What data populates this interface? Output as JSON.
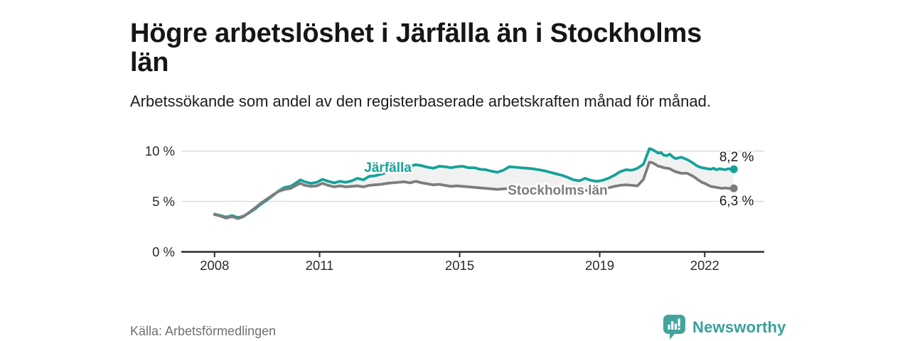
{
  "header": {
    "title": "Högre arbetslöshet i Järfälla än i Stockholms län",
    "subtitle": "Arbetssökande som andel av den registerbaserade arbetskraften månad för månad."
  },
  "footer": {
    "source": "Källa: Arbetsförmedlingen",
    "brand": "Newsworthy",
    "brand_color": "#38a19a"
  },
  "chart_data": {
    "type": "line",
    "title": "Högre arbetslöshet i Järfälla än i Stockholms län",
    "subtitle": "Arbetssökande som andel av den registerbaserade arbetskraften månad för månad.",
    "source": "Källa: Arbetsförmedlingen",
    "unit": "%",
    "grid": "horizontal",
    "x_range": [
      2007.05,
      2023.7
    ],
    "y_range": [
      0,
      11.6
    ],
    "x_ticks": [
      {
        "v": 2008,
        "label": "2008"
      },
      {
        "v": 2011,
        "label": "2011"
      },
      {
        "v": 2015,
        "label": "2015"
      },
      {
        "v": 2019,
        "label": "2019"
      },
      {
        "v": 2022,
        "label": "2022"
      }
    ],
    "y_ticks": [
      {
        "v": 0,
        "label": "0 %"
      },
      {
        "v": 5,
        "label": "5 %"
      },
      {
        "v": 10,
        "label": "10 %"
      }
    ],
    "fill_between_color": "#f1f1f1",
    "axis_color": "#2e2e2e",
    "grid_color": "#dadada",
    "tick_label_color": "#2b2b2b",
    "value_label_color": "#191919",
    "series": [
      {
        "name": "Järfälla",
        "color": "#16a299",
        "label_pos": [
          2012.95,
          8.4
        ],
        "end_label": "8,2 %",
        "end_value": 8.2,
        "points": [
          [
            2008.0,
            3.75
          ],
          [
            2008.17,
            3.6
          ],
          [
            2008.33,
            3.45
          ],
          [
            2008.5,
            3.6
          ],
          [
            2008.67,
            3.4
          ],
          [
            2008.83,
            3.55
          ],
          [
            2009.0,
            3.9
          ],
          [
            2009.17,
            4.3
          ],
          [
            2009.33,
            4.75
          ],
          [
            2009.5,
            5.15
          ],
          [
            2009.67,
            5.6
          ],
          [
            2009.83,
            6.05
          ],
          [
            2010.0,
            6.4
          ],
          [
            2010.17,
            6.5
          ],
          [
            2010.33,
            6.85
          ],
          [
            2010.45,
            7.15
          ],
          [
            2010.58,
            6.95
          ],
          [
            2010.75,
            6.8
          ],
          [
            2010.92,
            6.9
          ],
          [
            2011.08,
            7.2
          ],
          [
            2011.25,
            7.0
          ],
          [
            2011.42,
            6.85
          ],
          [
            2011.58,
            7.0
          ],
          [
            2011.75,
            6.9
          ],
          [
            2011.92,
            7.05
          ],
          [
            2012.08,
            7.3
          ],
          [
            2012.25,
            7.15
          ],
          [
            2012.42,
            7.5
          ],
          [
            2012.58,
            7.55
          ],
          [
            2012.75,
            7.7
          ],
          [
            2012.92,
            7.9
          ],
          [
            2013.08,
            8.1
          ],
          [
            2013.25,
            8.25
          ],
          [
            2013.42,
            8.4
          ],
          [
            2013.58,
            8.5
          ],
          [
            2013.75,
            8.65
          ],
          [
            2013.92,
            8.55
          ],
          [
            2014.08,
            8.4
          ],
          [
            2014.25,
            8.3
          ],
          [
            2014.42,
            8.5
          ],
          [
            2014.58,
            8.45
          ],
          [
            2014.75,
            8.35
          ],
          [
            2014.92,
            8.45
          ],
          [
            2015.08,
            8.5
          ],
          [
            2015.25,
            8.35
          ],
          [
            2015.42,
            8.35
          ],
          [
            2015.58,
            8.2
          ],
          [
            2015.75,
            8.15
          ],
          [
            2015.92,
            8.0
          ],
          [
            2016.08,
            7.9
          ],
          [
            2016.25,
            8.1
          ],
          [
            2016.42,
            8.45
          ],
          [
            2016.58,
            8.4
          ],
          [
            2016.75,
            8.35
          ],
          [
            2016.92,
            8.3
          ],
          [
            2017.08,
            8.25
          ],
          [
            2017.25,
            8.15
          ],
          [
            2017.42,
            8.05
          ],
          [
            2017.58,
            7.9
          ],
          [
            2017.75,
            7.75
          ],
          [
            2017.92,
            7.6
          ],
          [
            2018.08,
            7.4
          ],
          [
            2018.25,
            7.15
          ],
          [
            2018.42,
            7.05
          ],
          [
            2018.58,
            7.3
          ],
          [
            2018.75,
            7.1
          ],
          [
            2018.92,
            7.0
          ],
          [
            2019.08,
            7.1
          ],
          [
            2019.25,
            7.3
          ],
          [
            2019.42,
            7.6
          ],
          [
            2019.58,
            7.95
          ],
          [
            2019.75,
            8.15
          ],
          [
            2019.92,
            8.1
          ],
          [
            2020.08,
            8.3
          ],
          [
            2020.25,
            8.7
          ],
          [
            2020.42,
            10.25
          ],
          [
            2020.5,
            10.15
          ],
          [
            2020.58,
            10.0
          ],
          [
            2020.67,
            9.8
          ],
          [
            2020.75,
            9.85
          ],
          [
            2020.83,
            9.6
          ],
          [
            2020.92,
            9.55
          ],
          [
            2021.0,
            9.7
          ],
          [
            2021.08,
            9.45
          ],
          [
            2021.17,
            9.25
          ],
          [
            2021.33,
            9.4
          ],
          [
            2021.5,
            9.15
          ],
          [
            2021.58,
            9.0
          ],
          [
            2021.67,
            8.8
          ],
          [
            2021.75,
            8.6
          ],
          [
            2021.83,
            8.45
          ],
          [
            2021.92,
            8.35
          ],
          [
            2022.0,
            8.3
          ],
          [
            2022.08,
            8.25
          ],
          [
            2022.17,
            8.2
          ],
          [
            2022.25,
            8.3
          ],
          [
            2022.33,
            8.15
          ],
          [
            2022.42,
            8.25
          ],
          [
            2022.5,
            8.2
          ],
          [
            2022.58,
            8.15
          ],
          [
            2022.67,
            8.25
          ],
          [
            2022.75,
            8.2
          ],
          [
            2022.83,
            8.2
          ]
        ]
      },
      {
        "name": "Stockholms län",
        "color": "#7d7d7d",
        "label_pos": [
          2017.8,
          6.15
        ],
        "end_label": "6,3 %",
        "end_value": 6.3,
        "points": [
          [
            2008.0,
            3.7
          ],
          [
            2008.17,
            3.55
          ],
          [
            2008.33,
            3.35
          ],
          [
            2008.5,
            3.5
          ],
          [
            2008.67,
            3.3
          ],
          [
            2008.83,
            3.5
          ],
          [
            2009.0,
            3.95
          ],
          [
            2009.17,
            4.4
          ],
          [
            2009.33,
            4.85
          ],
          [
            2009.5,
            5.25
          ],
          [
            2009.67,
            5.65
          ],
          [
            2009.83,
            6.0
          ],
          [
            2010.0,
            6.2
          ],
          [
            2010.17,
            6.3
          ],
          [
            2010.33,
            6.6
          ],
          [
            2010.45,
            6.8
          ],
          [
            2010.58,
            6.6
          ],
          [
            2010.75,
            6.5
          ],
          [
            2010.92,
            6.55
          ],
          [
            2011.08,
            6.8
          ],
          [
            2011.25,
            6.6
          ],
          [
            2011.42,
            6.45
          ],
          [
            2011.58,
            6.55
          ],
          [
            2011.75,
            6.45
          ],
          [
            2011.92,
            6.5
          ],
          [
            2012.08,
            6.55
          ],
          [
            2012.25,
            6.45
          ],
          [
            2012.42,
            6.6
          ],
          [
            2012.58,
            6.65
          ],
          [
            2012.75,
            6.7
          ],
          [
            2012.92,
            6.8
          ],
          [
            2013.08,
            6.85
          ],
          [
            2013.25,
            6.9
          ],
          [
            2013.42,
            6.95
          ],
          [
            2013.58,
            6.85
          ],
          [
            2013.75,
            7.0
          ],
          [
            2013.92,
            6.85
          ],
          [
            2014.08,
            6.75
          ],
          [
            2014.25,
            6.65
          ],
          [
            2014.42,
            6.7
          ],
          [
            2014.58,
            6.6
          ],
          [
            2014.75,
            6.5
          ],
          [
            2014.92,
            6.55
          ],
          [
            2015.08,
            6.5
          ],
          [
            2015.25,
            6.45
          ],
          [
            2015.42,
            6.4
          ],
          [
            2015.58,
            6.35
          ],
          [
            2015.75,
            6.3
          ],
          [
            2015.92,
            6.25
          ],
          [
            2016.08,
            6.2
          ],
          [
            2016.25,
            6.25
          ],
          [
            2016.42,
            6.3
          ],
          [
            2016.58,
            6.25
          ],
          [
            2016.75,
            6.2
          ],
          [
            2016.92,
            6.15
          ],
          [
            2017.08,
            6.1
          ],
          [
            2017.25,
            6.05
          ],
          [
            2017.42,
            6.1
          ],
          [
            2017.58,
            6.05
          ],
          [
            2017.75,
            6.0
          ],
          [
            2017.92,
            5.95
          ],
          [
            2018.08,
            6.0
          ],
          [
            2018.25,
            5.95
          ],
          [
            2018.42,
            6.0
          ],
          [
            2018.58,
            6.1
          ],
          [
            2018.75,
            6.05
          ],
          [
            2018.92,
            6.1
          ],
          [
            2019.08,
            6.2
          ],
          [
            2019.25,
            6.35
          ],
          [
            2019.42,
            6.5
          ],
          [
            2019.58,
            6.6
          ],
          [
            2019.75,
            6.65
          ],
          [
            2019.92,
            6.6
          ],
          [
            2020.08,
            6.55
          ],
          [
            2020.25,
            7.2
          ],
          [
            2020.42,
            8.9
          ],
          [
            2020.5,
            8.85
          ],
          [
            2020.58,
            8.7
          ],
          [
            2020.67,
            8.5
          ],
          [
            2020.75,
            8.45
          ],
          [
            2020.83,
            8.35
          ],
          [
            2020.92,
            8.3
          ],
          [
            2021.0,
            8.25
          ],
          [
            2021.08,
            8.1
          ],
          [
            2021.17,
            7.95
          ],
          [
            2021.33,
            7.8
          ],
          [
            2021.5,
            7.8
          ],
          [
            2021.58,
            7.65
          ],
          [
            2021.67,
            7.5
          ],
          [
            2021.75,
            7.3
          ],
          [
            2021.83,
            7.1
          ],
          [
            2021.92,
            6.9
          ],
          [
            2022.0,
            6.8
          ],
          [
            2022.08,
            6.65
          ],
          [
            2022.17,
            6.5
          ],
          [
            2022.25,
            6.45
          ],
          [
            2022.33,
            6.4
          ],
          [
            2022.42,
            6.35
          ],
          [
            2022.5,
            6.3
          ],
          [
            2022.58,
            6.35
          ],
          [
            2022.67,
            6.3
          ],
          [
            2022.75,
            6.3
          ],
          [
            2022.83,
            6.3
          ]
        ]
      }
    ]
  }
}
